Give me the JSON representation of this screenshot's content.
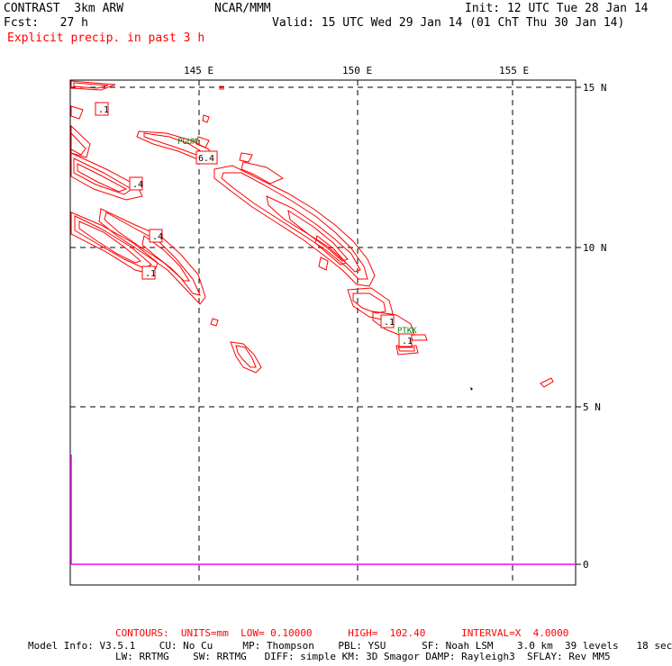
{
  "header": {
    "model": "CONTRAST  3km ARW",
    "center": "NCAR/MMM",
    "init": "Init: 12 UTC Tue 28 Jan 14",
    "fcst": "Fcst:   27 h",
    "valid": "Valid: 15 UTC Wed 29 Jan 14 (01 ChT Thu 30 Jan 14)",
    "field": "Explicit precip. in past 3 h"
  },
  "map": {
    "lon_labels": [
      "145 E",
      "150 E",
      "155 E"
    ],
    "lat_labels": [
      "15 N",
      "10 N",
      "5 N",
      "0"
    ],
    "contour_labels": [
      ".1",
      "6.4",
      ".4",
      ".4",
      ".1",
      ".1",
      ".1"
    ],
    "stations": [
      "PGUM",
      "PTKK"
    ],
    "colors": {
      "contour": "#ff0000",
      "line": "#ff00ff",
      "station": "#008000",
      "grid": "#000000"
    }
  },
  "footer": {
    "contours": "CONTOURS:  UNITS=mm  LOW= 0.10000      HIGH=  102.40      INTERVAL=X  4.0000",
    "model_info_1": "Model Info: V3.5.1    CU: No Cu     MP: Thompson    PBL: YSU      SF: Noah LSM    3.0 km  39 levels   18 sec",
    "model_info_2": "LW: RRTMG    SW: RRTMG   DIFF: simple KM: 3D Smagor DAMP: Rayleigh3  SFLAY: Rev MM5"
  }
}
